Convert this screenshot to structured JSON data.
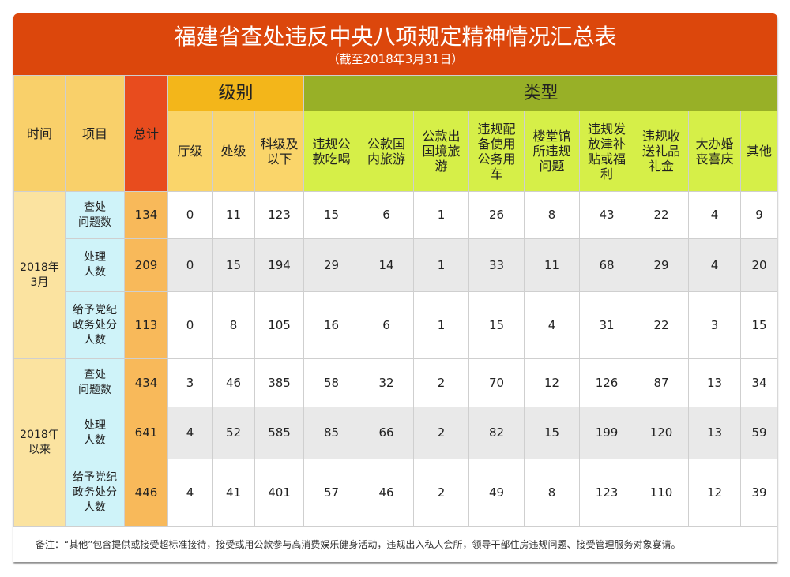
{
  "title": "福建省查处违反中央八项规定精神情况汇总表",
  "subtitle": "（截至2018年3月31日）",
  "headers": {
    "time": "时间",
    "item": "项目",
    "total": "总计",
    "level_group": "级别",
    "type_group": "类型",
    "levels": [
      "厅级",
      "处级",
      "科级及\n以下"
    ],
    "types": [
      "违规公\n款吃喝",
      "公款国\n内旅游",
      "公款出\n国境旅\n游",
      "违规配\n备使用\n公务用\n车",
      "楼堂馆\n所违规\n问题",
      "违规发\n放津补\n贴或福\n利",
      "违规收\n送礼品\n礼金",
      "大办婚\n丧喜庆",
      "其他"
    ]
  },
  "groups": [
    {
      "time": "2018年\n3月",
      "rows": [
        {
          "item": "查处\n问题数",
          "total": "134",
          "values": [
            "0",
            "11",
            "123",
            "15",
            "6",
            "1",
            "26",
            "8",
            "43",
            "22",
            "4",
            "9"
          ]
        },
        {
          "item": "处理\n人数",
          "total": "209",
          "values": [
            "0",
            "15",
            "194",
            "29",
            "14",
            "1",
            "33",
            "11",
            "68",
            "29",
            "4",
            "20"
          ]
        },
        {
          "item": "给予党纪\n政务处分\n人数",
          "total": "113",
          "values": [
            "0",
            "8",
            "105",
            "16",
            "6",
            "1",
            "15",
            "4",
            "31",
            "22",
            "3",
            "15"
          ]
        }
      ]
    },
    {
      "time": "2018年\n以来",
      "rows": [
        {
          "item": "查处\n问题数",
          "total": "434",
          "values": [
            "3",
            "46",
            "385",
            "58",
            "32",
            "2",
            "70",
            "12",
            "126",
            "87",
            "13",
            "34"
          ]
        },
        {
          "item": "处理\n人数",
          "total": "641",
          "values": [
            "4",
            "52",
            "585",
            "85",
            "66",
            "2",
            "82",
            "15",
            "199",
            "120",
            "13",
            "59"
          ]
        },
        {
          "item": "给予党纪\n政务处分\n人数",
          "total": "446",
          "values": [
            "4",
            "41",
            "401",
            "57",
            "46",
            "2",
            "49",
            "8",
            "123",
            "110",
            "12",
            "39"
          ]
        }
      ]
    }
  ],
  "note": "备注：“其他”包含提供或接受超标准接待，接受或用公款参与高消费娱乐健身活动，违规出入私人会所，领导干部住房违规问题、接受管理服务对象宴请。",
  "colors": {
    "title_bar": "#dc470c",
    "total": "#e84c1e",
    "level": "#f3b61a",
    "type": "#98b027",
    "type_sub": "#d6ef48"
  }
}
